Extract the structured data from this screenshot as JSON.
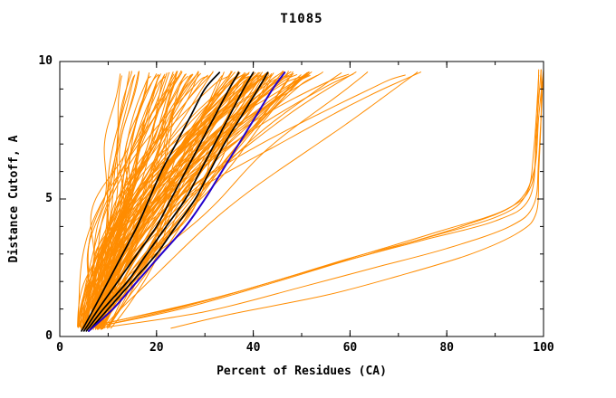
{
  "title": "T1085",
  "chart_data": {
    "type": "line",
    "title": "T1085",
    "xlabel": "Percent of Residues (CA)",
    "ylabel": "Distance Cutoff, A",
    "xlim": [
      0,
      100
    ],
    "ylim": [
      0,
      10
    ],
    "grid": false,
    "legend": "none",
    "xticks": {
      "values": [
        0,
        20,
        40,
        60,
        80,
        100
      ],
      "labels": [
        "0",
        "20",
        "40",
        "60",
        "80",
        "100"
      ]
    },
    "yticks": {
      "values": [
        0,
        5,
        10
      ],
      "labels": [
        "0",
        "5",
        "10"
      ]
    },
    "x_minor_step": 10,
    "y_minor_step": 1,
    "colors": {
      "ensemble": "#ff8c00",
      "highlight": "#000000",
      "reference": "#2200cc",
      "axes": "#000000"
    },
    "ensemble": {
      "description": "bundle of orange model curves: cumulative percent of CA residues under each distance cutoff",
      "count": 125,
      "seed": 20211085,
      "start_x_range": [
        3.5,
        9
      ],
      "top_x_main_range": [
        20,
        52
      ],
      "top_x_left_range": [
        12,
        20
      ],
      "top_x_right_range": [
        52,
        75
      ]
    },
    "outlier_series": [
      {
        "name": "low-accuracy-model-1",
        "points": [
          [
            23,
            0.3
          ],
          [
            35,
            0.8
          ],
          [
            55,
            1.5
          ],
          [
            70,
            2.2
          ],
          [
            85,
            3.0
          ],
          [
            95,
            3.8
          ],
          [
            98.5,
            4.5
          ],
          [
            99,
            6.0
          ],
          [
            99.5,
            8.0
          ],
          [
            99.5,
            9.7
          ]
        ]
      },
      {
        "name": "low-accuracy-model-2",
        "points": [
          [
            8,
            0.3
          ],
          [
            30,
            0.9
          ],
          [
            50,
            1.8
          ],
          [
            65,
            2.5
          ],
          [
            80,
            3.2
          ],
          [
            93,
            4.0
          ],
          [
            98,
            4.8
          ],
          [
            99,
            6.5
          ],
          [
            100,
            9.7
          ]
        ]
      },
      {
        "name": "low-accuracy-model-3",
        "points": [
          [
            6,
            0.3
          ],
          [
            25,
            1.0
          ],
          [
            45,
            2.0
          ],
          [
            60,
            2.8
          ],
          [
            75,
            3.5
          ],
          [
            90,
            4.2
          ],
          [
            97,
            5.0
          ],
          [
            98.5,
            7.0
          ],
          [
            99,
            9.7
          ]
        ]
      },
      {
        "name": "low-accuracy-model-4",
        "points": [
          [
            7,
            0.4
          ],
          [
            28,
            1.2
          ],
          [
            48,
            2.2
          ],
          [
            63,
            3.0
          ],
          [
            78,
            3.8
          ],
          [
            92,
            4.6
          ],
          [
            97.5,
            5.5
          ],
          [
            98.5,
            7.5
          ],
          [
            99.5,
            9.7
          ]
        ]
      },
      {
        "name": "low-accuracy-model-5",
        "points": [
          [
            10,
            0.5
          ],
          [
            32,
            1.4
          ],
          [
            52,
            2.4
          ],
          [
            68,
            3.2
          ],
          [
            83,
            4.0
          ],
          [
            94,
            4.8
          ],
          [
            98,
            6.0
          ],
          [
            99,
            8.0
          ],
          [
            100,
            9.7
          ]
        ]
      },
      {
        "name": "low-accuracy-model-6",
        "points": [
          [
            9,
            0.4
          ],
          [
            26,
            1.1
          ],
          [
            46,
            2.1
          ],
          [
            61,
            2.9
          ],
          [
            76,
            3.6
          ],
          [
            91,
            4.4
          ],
          [
            96.5,
            5.2
          ],
          [
            98,
            6.8
          ],
          [
            99,
            9.5
          ]
        ]
      }
    ],
    "highlight_series": [
      {
        "name": "black-model-1",
        "points": [
          [
            4.5,
            0.2
          ],
          [
            7,
            1
          ],
          [
            10,
            2
          ],
          [
            13,
            3
          ],
          [
            16,
            4
          ],
          [
            18.5,
            5
          ],
          [
            21,
            6
          ],
          [
            24,
            7
          ],
          [
            27,
            8
          ],
          [
            30,
            9
          ],
          [
            33,
            9.6
          ]
        ]
      },
      {
        "name": "black-model-2",
        "points": [
          [
            5,
            0.2
          ],
          [
            8,
            1
          ],
          [
            12,
            2
          ],
          [
            16,
            3
          ],
          [
            20,
            4
          ],
          [
            23,
            5
          ],
          [
            26,
            6
          ],
          [
            29,
            7
          ],
          [
            32,
            8
          ],
          [
            35,
            9
          ],
          [
            37,
            9.6
          ]
        ]
      },
      {
        "name": "black-model-3",
        "points": [
          [
            5.5,
            0.2
          ],
          [
            9,
            1
          ],
          [
            14,
            2
          ],
          [
            18,
            3
          ],
          [
            22,
            4
          ],
          [
            26,
            5
          ],
          [
            29,
            6
          ],
          [
            32,
            7
          ],
          [
            35,
            8
          ],
          [
            38,
            9
          ],
          [
            40,
            9.6
          ]
        ]
      },
      {
        "name": "black-model-4",
        "points": [
          [
            6,
            0.2
          ],
          [
            10,
            1
          ],
          [
            15,
            2
          ],
          [
            20,
            3
          ],
          [
            24,
            4
          ],
          [
            28,
            5
          ],
          [
            31,
            6
          ],
          [
            34,
            7
          ],
          [
            37.5,
            8
          ],
          [
            41,
            9
          ],
          [
            43,
            9.6
          ]
        ]
      }
    ],
    "reference_series": {
      "name": "blue-model",
      "points": [
        [
          6,
          0.2
        ],
        [
          11,
          1
        ],
        [
          16,
          2
        ],
        [
          21,
          3
        ],
        [
          26,
          4
        ],
        [
          30,
          5
        ],
        [
          33.5,
          6
        ],
        [
          37,
          7
        ],
        [
          40.5,
          8
        ],
        [
          44,
          9
        ],
        [
          46.5,
          9.6
        ]
      ]
    }
  }
}
